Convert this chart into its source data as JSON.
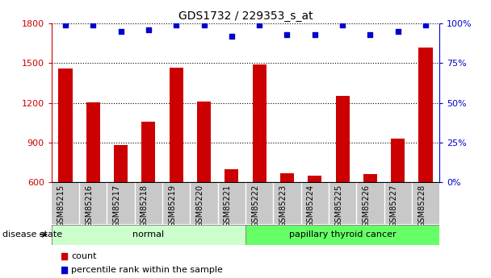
{
  "title": "GDS1732 / 229353_s_at",
  "samples": [
    "GSM85215",
    "GSM85216",
    "GSM85217",
    "GSM85218",
    "GSM85219",
    "GSM85220",
    "GSM85221",
    "GSM85222",
    "GSM85223",
    "GSM85224",
    "GSM85225",
    "GSM85226",
    "GSM85227",
    "GSM85228"
  ],
  "counts": [
    1460,
    1205,
    880,
    1060,
    1465,
    1210,
    700,
    1490,
    670,
    650,
    1255,
    660,
    930,
    1620
  ],
  "percentile_ranks": [
    99,
    99,
    95,
    96,
    99,
    99,
    92,
    99,
    93,
    93,
    99,
    93,
    95,
    99
  ],
  "bar_color": "#cc0000",
  "dot_color": "#0000cc",
  "ylim_left": [
    600,
    1800
  ],
  "ylim_right": [
    0,
    100
  ],
  "yticks_left": [
    600,
    900,
    1200,
    1500,
    1800
  ],
  "yticks_right": [
    0,
    25,
    50,
    75,
    100
  ],
  "groups": [
    {
      "label": "normal",
      "start": 0,
      "end": 7,
      "color": "#ccffcc"
    },
    {
      "label": "papillary thyroid cancer",
      "start": 7,
      "end": 14,
      "color": "#66ff66"
    }
  ],
  "disease_state_label": "disease state",
  "legend_items": [
    {
      "label": "count",
      "color": "#cc0000"
    },
    {
      "label": "percentile rank within the sample",
      "color": "#0000cc"
    }
  ],
  "sample_bg_color": "#c8c8c8",
  "plot_bg_color": "#ffffff",
  "grid_color": "#000000",
  "tick_label_color_left": "#cc0000",
  "tick_label_color_right": "#0000cc"
}
